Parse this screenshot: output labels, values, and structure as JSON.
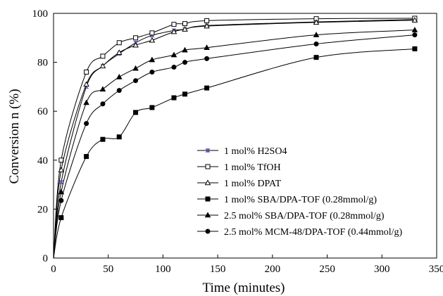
{
  "chart_data": {
    "type": "line",
    "title": "",
    "xlabel": "Time (minutes)",
    "ylabel": "Conversion n (%)",
    "xlim": [
      0,
      350
    ],
    "ylim": [
      0,
      100
    ],
    "xticks": [
      0,
      50,
      100,
      150,
      200,
      250,
      300,
      350
    ],
    "yticks": [
      0,
      20,
      40,
      60,
      80,
      100
    ],
    "grid": false,
    "legend_position": "center-right",
    "series": [
      {
        "name": "1 mol% H2SO4",
        "marker": "asterisk",
        "x": [
          0,
          7,
          30,
          45,
          60,
          75,
          90,
          110,
          120,
          140,
          240,
          330
        ],
        "y": [
          0,
          31,
          70,
          78.5,
          83.5,
          88,
          91,
          93,
          93.5,
          95,
          96.5,
          97.5
        ]
      },
      {
        "name": "1 mol% TfOH",
        "marker": "open-square",
        "x": [
          0,
          7,
          30,
          45,
          60,
          75,
          90,
          110,
          120,
          140,
          240,
          330
        ],
        "y": [
          0,
          40,
          76,
          82.5,
          88,
          90,
          92,
          95.5,
          95.8,
          97,
          97.8,
          98
        ]
      },
      {
        "name": "1 mol% DPAT",
        "marker": "open-triangle",
        "x": [
          0,
          7,
          30,
          45,
          60,
          75,
          90,
          110,
          120,
          140,
          240,
          330
        ],
        "y": [
          0,
          36,
          71,
          78.5,
          84,
          87,
          89,
          92.5,
          93.5,
          94.8,
          96.3,
          97.2
        ]
      },
      {
        "name": "1 mol% SBA/DPA-TOF (0.28mmol/g)",
        "marker": "filled-square",
        "x": [
          0,
          7,
          30,
          45,
          60,
          75,
          90,
          110,
          120,
          140,
          240,
          330
        ],
        "y": [
          0,
          16.5,
          41.5,
          48.5,
          49.5,
          59.5,
          61.5,
          65.5,
          67,
          69.5,
          82,
          85.5
        ]
      },
      {
        "name": "2.5 mol% SBA/DPA-TOF (0.28mmol/g)",
        "marker": "filled-triangle",
        "x": [
          0,
          7,
          30,
          45,
          60,
          75,
          90,
          110,
          120,
          140,
          240,
          330
        ],
        "y": [
          0,
          27,
          63.5,
          69,
          74,
          77.5,
          81,
          83,
          85,
          86,
          91.2,
          93.2
        ]
      },
      {
        "name": "2.5 mol% MCM-48/DPA-TOF (0.44mmol/g)",
        "marker": "filled-circle",
        "x": [
          0,
          7,
          30,
          45,
          60,
          75,
          90,
          110,
          120,
          140,
          240,
          330
        ],
        "y": [
          0,
          23.5,
          55,
          63,
          68.5,
          72.5,
          76,
          78,
          80,
          81.5,
          87.5,
          91.2
        ]
      }
    ]
  }
}
